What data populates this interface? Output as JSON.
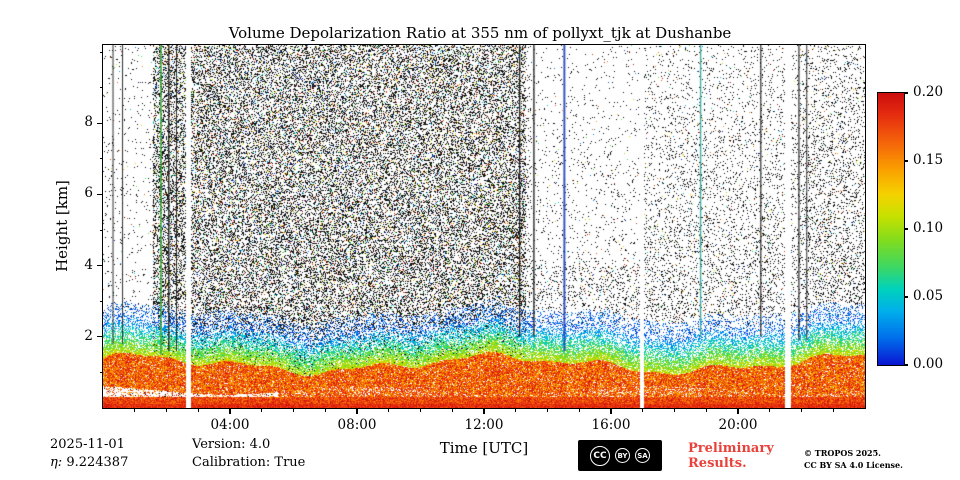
{
  "title": "Volume Depolarization Ratio at 355 nm of pollyxt_tjk at Dushanbe",
  "axes": {
    "x_label": "Time [UTC]",
    "y_label": "Height [km]",
    "x_ticks": [
      "04:00",
      "08:00",
      "12:00",
      "16:00",
      "20:00"
    ],
    "x_tick_hours": [
      4,
      8,
      12,
      16,
      20
    ],
    "y_ticks": [
      "2",
      "4",
      "6",
      "8"
    ],
    "y_tick_km": [
      2,
      4,
      6,
      8
    ]
  },
  "colorbar": {
    "ticks": [
      "0.20",
      "0.15",
      "0.10",
      "0.05",
      "0.00"
    ],
    "tick_values": [
      0.2,
      0.15,
      0.1,
      0.05,
      0.0
    ],
    "min": 0.0,
    "max": 0.2
  },
  "chart_data": {
    "type": "heatmap",
    "title": "Volume Depolarization Ratio at 355 nm of pollyxt_tjk at Dushanbe",
    "xlabel": "Time [UTC]",
    "ylabel": "Height [km]",
    "x_range_hours": [
      0,
      24
    ],
    "y_range_km": [
      0,
      10.2
    ],
    "value_range": [
      0.0,
      0.2
    ],
    "legend": "volume depolarization ratio, jet-like colormap blue(0.00) to red(0.20)",
    "colormap_stops": [
      {
        "p": 0.0,
        "c": [
          10,
          20,
          210
        ]
      },
      {
        "p": 0.1,
        "c": [
          0,
          110,
          235
        ]
      },
      {
        "p": 0.2,
        "c": [
          0,
          175,
          235
        ]
      },
      {
        "p": 0.28,
        "c": [
          0,
          210,
          190
        ]
      },
      {
        "p": 0.36,
        "c": [
          60,
          215,
          100
        ]
      },
      {
        "p": 0.46,
        "c": [
          130,
          220,
          30
        ]
      },
      {
        "p": 0.55,
        "c": [
          200,
          225,
          0
        ]
      },
      {
        "p": 0.63,
        "c": [
          245,
          210,
          0
        ]
      },
      {
        "p": 0.72,
        "c": [
          250,
          160,
          0
        ]
      },
      {
        "p": 0.82,
        "c": [
          245,
          100,
          10
        ]
      },
      {
        "p": 0.92,
        "c": [
          230,
          45,
          15
        ]
      },
      {
        "p": 1.0,
        "c": [
          205,
          15,
          15
        ]
      }
    ],
    "features": {
      "surface_top": 0.33,
      "surface_value_range": [
        0.15,
        0.2
      ],
      "band_top_mean": 1.25,
      "band_top_amp": 0.2,
      "band_value_range": [
        0.13,
        0.2
      ],
      "transition_top_km": 2.3,
      "transition_value_range": [
        0.01,
        0.12
      ],
      "dense_hours": [
        1.55,
        13.3
      ],
      "dense_density": 0.33,
      "sparse_density_early": 0.03,
      "data_gaps": [
        {
          "t": 2.68,
          "w": 0.16
        },
        {
          "t": 16.95,
          "w": 0.13
        },
        {
          "t": 21.55,
          "w": 0.2
        }
      ],
      "vertical_lines": [
        {
          "t": 0.3,
          "color": "#1a1a1a",
          "to_km": 1.8,
          "w": 1
        },
        {
          "t": 0.6,
          "color": "#1a1a1a",
          "to_km": 1.8,
          "w": 1
        },
        {
          "t": 1.8,
          "color": "#2f9e2f",
          "to_km": 1.5,
          "w": 1.6
        },
        {
          "t": 2.05,
          "color": "#151515",
          "to_km": 1.6,
          "w": 1.4
        },
        {
          "t": 2.3,
          "color": "#151515",
          "to_km": 1.6,
          "w": 1
        },
        {
          "t": 13.1,
          "color": "#151515",
          "to_km": 2.0,
          "w": 1.4
        },
        {
          "t": 13.55,
          "color": "#151515",
          "to_km": 2.0,
          "w": 1.4
        },
        {
          "t": 14.5,
          "color": "#2244bb",
          "to_km": 1.6,
          "w": 2
        },
        {
          "t": 18.8,
          "color": "#2fa8a0",
          "to_km": 2.0,
          "w": 1.4
        },
        {
          "t": 20.7,
          "color": "#151515",
          "to_km": 2.0,
          "w": 1.2
        },
        {
          "t": 21.9,
          "color": "#151515",
          "to_km": 1.9,
          "w": 1.2
        },
        {
          "t": 22.15,
          "color": "#151515",
          "to_km": 1.9,
          "w": 1
        }
      ]
    }
  },
  "footer": {
    "date": "2025-11-01",
    "eta_symbol": "η:",
    "eta_value": "9.224387",
    "version": "Version: 4.0",
    "calibration": "Calibration: True",
    "preliminary_line1": "Preliminary",
    "preliminary_line2": "Results.",
    "copyright": "© TROPOS 2025.",
    "license": "CC BY SA 4.0 License.",
    "badge": {
      "cc": "CC",
      "by": "BY",
      "sa": "SA"
    }
  }
}
